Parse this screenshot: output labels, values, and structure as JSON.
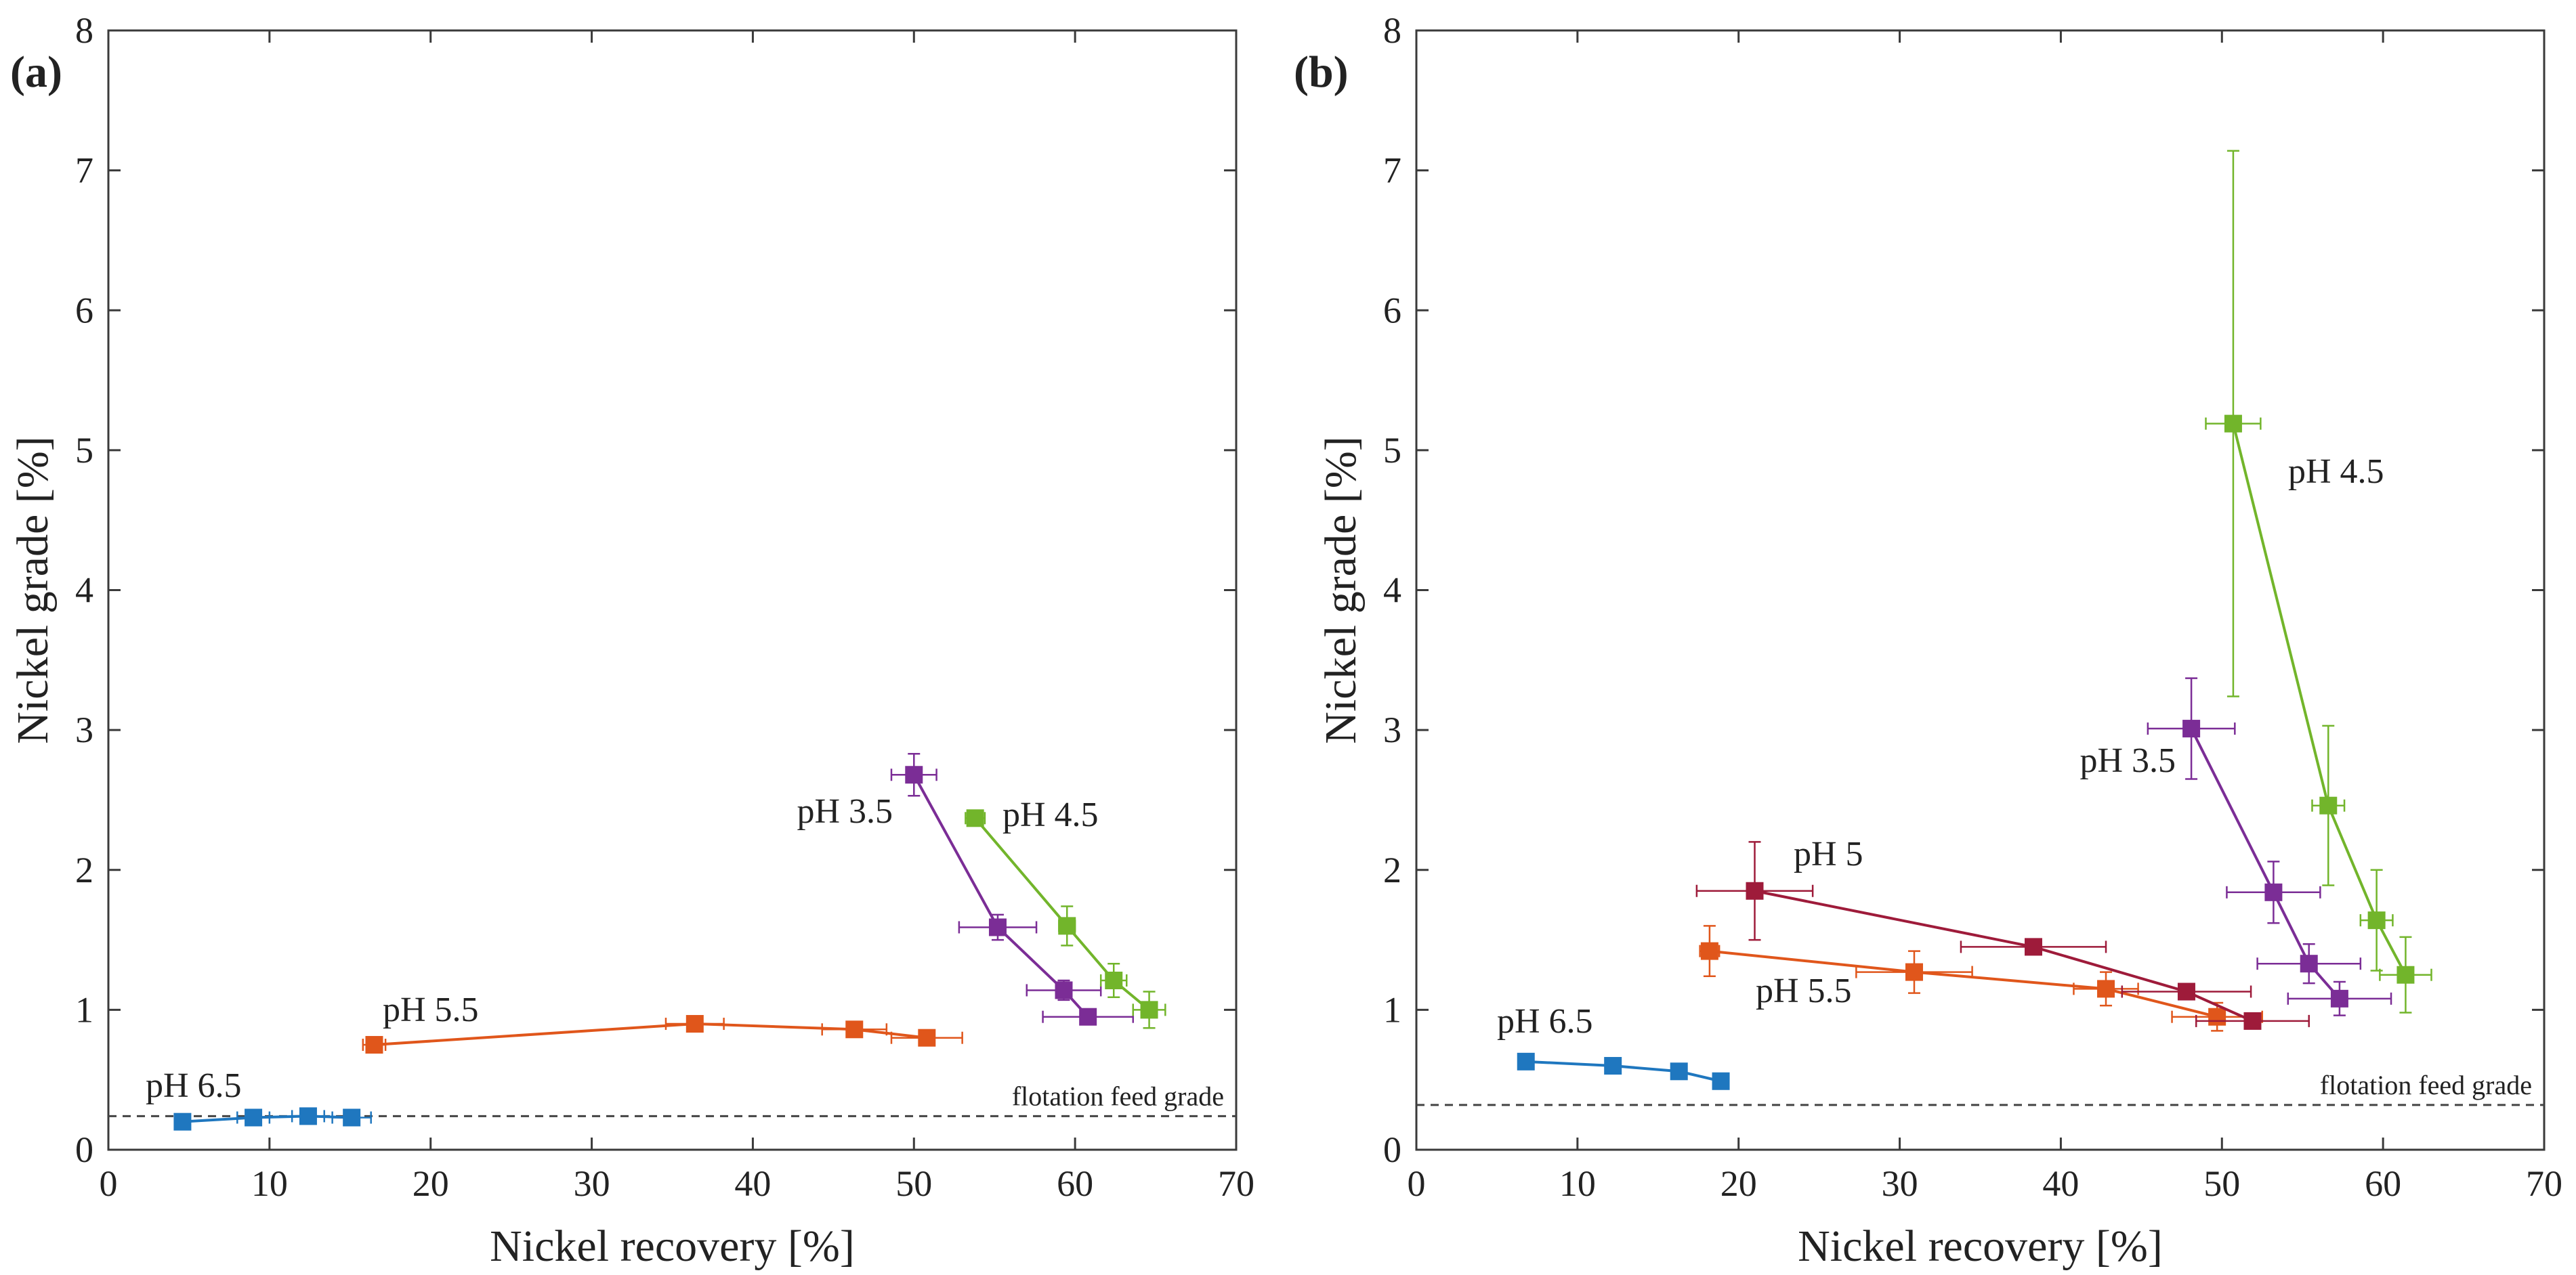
{
  "chart_data": [
    {
      "panel_label": "(a)",
      "type": "line",
      "xlabel": "Nickel recovery [%]",
      "ylabel": "Nickel grade [%]",
      "xlim": [
        0,
        70
      ],
      "ylim": [
        0,
        8
      ],
      "xticks": [
        0,
        10,
        20,
        30,
        40,
        50,
        60,
        70
      ],
      "yticks": [
        0,
        1,
        2,
        3,
        4,
        5,
        6,
        7,
        8
      ],
      "reference_line": {
        "label": "flotation feed grade",
        "y": 0.24
      },
      "series": [
        {
          "name": "pH 6.5",
          "color": "#1f77bf",
          "points": [
            {
              "x": 4.6,
              "y": 0.2,
              "xerr": 0.4,
              "yerr": 0.02
            },
            {
              "x": 9.0,
              "y": 0.23,
              "xerr": 1.0,
              "yerr": 0.02
            },
            {
              "x": 12.4,
              "y": 0.24,
              "xerr": 1.0,
              "yerr": 0.02
            },
            {
              "x": 15.1,
              "y": 0.23,
              "xerr": 1.2,
              "yerr": 0.02
            }
          ]
        },
        {
          "name": "pH 5.5",
          "color": "#e0561b",
          "points": [
            {
              "x": 16.5,
              "y": 0.75,
              "xerr": 0.7,
              "yerr": 0.04
            },
            {
              "x": 36.4,
              "y": 0.9,
              "xerr": 1.8,
              "yerr": 0.04
            },
            {
              "x": 46.3,
              "y": 0.86,
              "xerr": 2.0,
              "yerr": 0.04
            },
            {
              "x": 50.8,
              "y": 0.8,
              "xerr": 2.2,
              "yerr": 0.04
            }
          ]
        },
        {
          "name": "pH 3.5",
          "color": "#7b2d96",
          "points": [
            {
              "x": 50.0,
              "y": 2.68,
              "xerr": 1.4,
              "yerr": 0.15
            },
            {
              "x": 55.2,
              "y": 1.59,
              "xerr": 2.4,
              "yerr": 0.09
            },
            {
              "x": 59.3,
              "y": 1.14,
              "xerr": 2.3,
              "yerr": 0.07
            },
            {
              "x": 60.8,
              "y": 0.95,
              "xerr": 2.8,
              "yerr": 0.05
            }
          ]
        },
        {
          "name": "pH 4.5",
          "color": "#72b52b",
          "points": [
            {
              "x": 53.8,
              "y": 2.37,
              "xerr": 0.6,
              "yerr": 0.04
            },
            {
              "x": 59.5,
              "y": 1.6,
              "xerr": 0.5,
              "yerr": 0.14
            },
            {
              "x": 62.4,
              "y": 1.21,
              "xerr": 0.8,
              "yerr": 0.12
            },
            {
              "x": 64.6,
              "y": 1.0,
              "xerr": 1.0,
              "yerr": 0.13
            }
          ]
        }
      ]
    },
    {
      "panel_label": "(b)",
      "type": "line",
      "xlabel": "Nickel recovery [%]",
      "ylabel": "Nickel grade [%]",
      "xlim": [
        0,
        70
      ],
      "ylim": [
        0,
        8
      ],
      "xticks": [
        0,
        10,
        20,
        30,
        40,
        50,
        60,
        70
      ],
      "yticks": [
        0,
        1,
        2,
        3,
        4,
        5,
        6,
        7,
        8
      ],
      "reference_line": {
        "label": "flotation feed grade",
        "y": 0.32
      },
      "series": [
        {
          "name": "pH 6.5",
          "color": "#1f77bf",
          "points": [
            {
              "x": 6.8,
              "y": 0.63,
              "xerr": 0.3,
              "yerr": 0.02
            },
            {
              "x": 12.2,
              "y": 0.6,
              "xerr": 0.3,
              "yerr": 0.02
            },
            {
              "x": 16.3,
              "y": 0.56,
              "xerr": 0.4,
              "yerr": 0.02
            },
            {
              "x": 18.9,
              "y": 0.49,
              "xerr": 0.3,
              "yerr": 0.02
            }
          ]
        },
        {
          "name": "pH 5.5",
          "color": "#e0561b",
          "points": [
            {
              "x": 18.2,
              "y": 1.42,
              "xerr": 0.6,
              "yerr": 0.18
            },
            {
              "x": 30.9,
              "y": 1.27,
              "xerr": 3.6,
              "yerr": 0.15
            },
            {
              "x": 42.8,
              "y": 1.15,
              "xerr": 2.0,
              "yerr": 0.12
            },
            {
              "x": 49.7,
              "y": 0.95,
              "xerr": 2.8,
              "yerr": 0.1
            }
          ]
        },
        {
          "name": "pH 5",
          "color": "#9e1b3a",
          "points": [
            {
              "x": 21.0,
              "y": 1.85,
              "xerr": 3.6,
              "yerr": 0.35
            },
            {
              "x": 38.3,
              "y": 1.45,
              "xerr": 4.5,
              "yerr": 0.04
            },
            {
              "x": 47.8,
              "y": 1.13,
              "xerr": 4.0,
              "yerr": 0.04
            },
            {
              "x": 51.9,
              "y": 0.92,
              "xerr": 3.5,
              "yerr": 0.04
            }
          ]
        },
        {
          "name": "pH 3.5",
          "color": "#7b2d96",
          "points": [
            {
              "x": 48.1,
              "y": 3.01,
              "xerr": 2.7,
              "yerr": 0.36
            },
            {
              "x": 53.2,
              "y": 1.84,
              "xerr": 2.9,
              "yerr": 0.22
            },
            {
              "x": 55.4,
              "y": 1.33,
              "xerr": 3.2,
              "yerr": 0.14
            },
            {
              "x": 57.3,
              "y": 1.08,
              "xerr": 3.2,
              "yerr": 0.12
            }
          ]
        },
        {
          "name": "pH 4.5",
          "color": "#72b52b",
          "points": [
            {
              "x": 50.7,
              "y": 5.19,
              "xerr": 1.7,
              "yerr": 1.95
            },
            {
              "x": 56.6,
              "y": 2.46,
              "xerr": 1.0,
              "yerr": 0.57
            },
            {
              "x": 59.6,
              "y": 1.64,
              "xerr": 1.0,
              "yerr": 0.36
            },
            {
              "x": 61.4,
              "y": 1.25,
              "xerr": 1.6,
              "yerr": 0.27
            }
          ]
        }
      ]
    }
  ]
}
